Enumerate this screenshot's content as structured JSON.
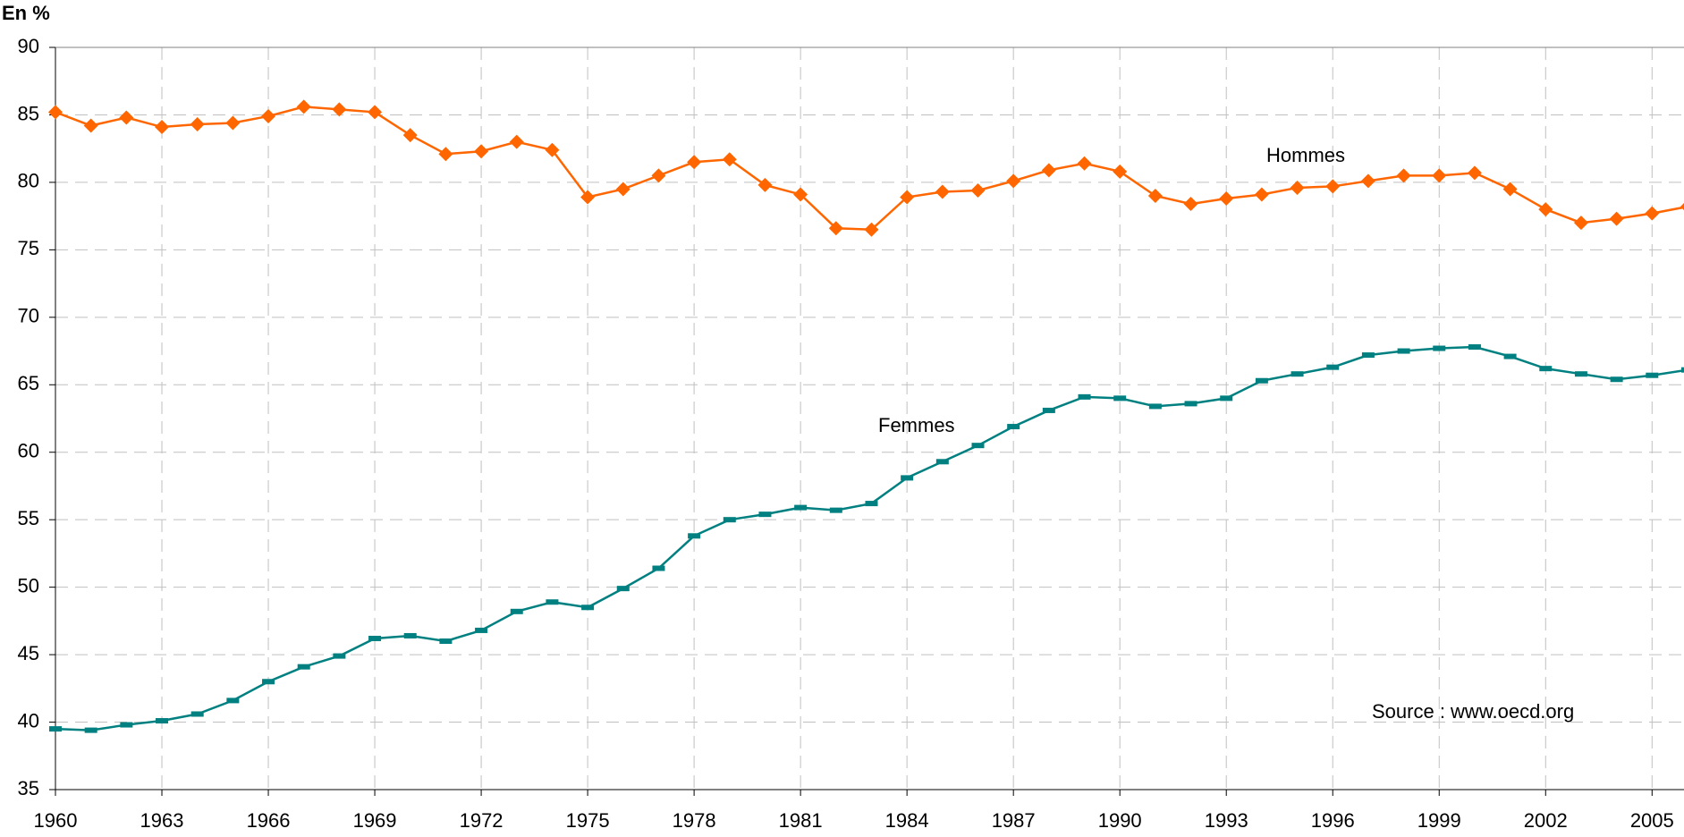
{
  "chart_data": {
    "type": "line",
    "title": "En %",
    "x": [
      1960,
      1961,
      1962,
      1963,
      1964,
      1965,
      1966,
      1967,
      1968,
      1969,
      1970,
      1971,
      1972,
      1973,
      1974,
      1975,
      1976,
      1977,
      1978,
      1979,
      1980,
      1981,
      1982,
      1983,
      1984,
      1985,
      1986,
      1987,
      1988,
      1989,
      1990,
      1991,
      1992,
      1993,
      1994,
      1995,
      1996,
      1997,
      1998,
      1999,
      2000,
      2001,
      2002,
      2003,
      2004,
      2005,
      2006
    ],
    "series": [
      {
        "name": "Hommes",
        "color": "#ff6600",
        "marker": "diamond",
        "values": [
          85.2,
          84.2,
          84.8,
          84.1,
          84.3,
          84.4,
          84.9,
          85.6,
          85.4,
          85.2,
          83.5,
          82.1,
          82.3,
          83.0,
          82.4,
          78.9,
          79.5,
          80.5,
          81.5,
          81.7,
          79.8,
          79.1,
          76.6,
          76.5,
          78.9,
          79.3,
          79.4,
          80.1,
          80.9,
          81.4,
          80.8,
          79.0,
          78.4,
          78.8,
          79.1,
          79.6,
          79.7,
          80.1,
          80.5,
          80.5,
          80.7,
          79.5,
          78.0,
          77.0,
          77.3,
          77.7,
          78.2
        ]
      },
      {
        "name": "Femmes",
        "color": "#008080",
        "marker": "dash",
        "values": [
          39.5,
          39.4,
          39.8,
          40.1,
          40.6,
          41.6,
          43.0,
          44.1,
          44.9,
          46.2,
          46.4,
          46.0,
          46.8,
          48.2,
          48.9,
          48.5,
          49.9,
          51.4,
          53.8,
          55.0,
          55.4,
          55.9,
          55.7,
          56.2,
          58.1,
          59.3,
          60.5,
          61.9,
          63.1,
          64.1,
          64.0,
          63.4,
          63.6,
          64.0,
          65.3,
          65.8,
          66.3,
          67.2,
          67.5,
          67.7,
          67.8,
          67.1,
          66.2,
          65.8,
          65.4,
          65.7,
          66.1
        ]
      }
    ],
    "annotations": [
      "Source : www.oecd.org"
    ],
    "xlim": [
      1960,
      2005.9
    ],
    "xticks": [
      1960,
      1963,
      1966,
      1969,
      1972,
      1975,
      1978,
      1981,
      1984,
      1987,
      1990,
      1993,
      1996,
      1999,
      2002,
      2005
    ],
    "ylim": [
      35,
      90
    ],
    "yticks": [
      35,
      40,
      45,
      50,
      55,
      60,
      65,
      70,
      75,
      80,
      85,
      90
    ],
    "grid": true
  }
}
